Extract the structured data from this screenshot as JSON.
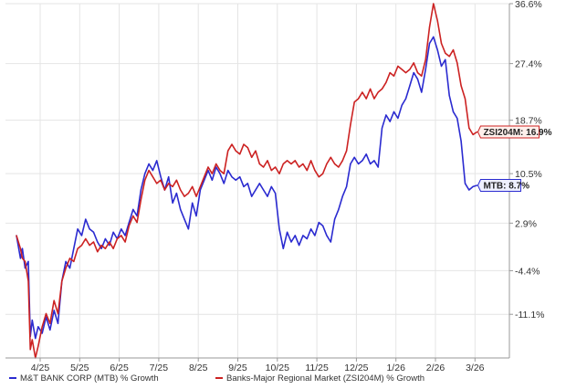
{
  "chart_data": {
    "type": "line",
    "x_ticks": [
      "4/25",
      "5/25",
      "6/25",
      "7/25",
      "8/25",
      "9/25",
      "10/25",
      "11/25",
      "12/25",
      "1/26",
      "2/26",
      "3/26"
    ],
    "x_range": [
      0,
      12.2
    ],
    "y_ticks": [
      "36.6%",
      "27.4%",
      "18.7%",
      "10.5%",
      "2.9%",
      "-4.4%",
      "-11.1%"
    ],
    "y_tick_values": [
      36.6,
      27.4,
      18.7,
      10.5,
      2.9,
      -4.4,
      -11.1
    ],
    "ylim": [
      -17.8,
      36.6
    ],
    "grid": true,
    "legend_placement": "bottom",
    "series": [
      {
        "name": "M&T BANK CORP (MTB) % Growth",
        "color": "#2b2bd0",
        "callout": "MTB: 8.7%",
        "callout_value": 8.7,
        "points": [
          [
            -0.6,
            1.0
          ],
          [
            -0.5,
            -2.5
          ],
          [
            -0.45,
            -1.0
          ],
          [
            -0.38,
            -4.0
          ],
          [
            -0.3,
            -3.0
          ],
          [
            -0.25,
            -14.5
          ],
          [
            -0.2,
            -12.0
          ],
          [
            -0.12,
            -14.8
          ],
          [
            -0.05,
            -13.0
          ],
          [
            0.05,
            -14.0
          ],
          [
            0.15,
            -11.5
          ],
          [
            0.25,
            -13.5
          ],
          [
            0.35,
            -10.5
          ],
          [
            0.45,
            -12.5
          ],
          [
            0.55,
            -6.0
          ],
          [
            0.65,
            -3.0
          ],
          [
            0.75,
            -4.0
          ],
          [
            0.85,
            -1.0
          ],
          [
            0.95,
            2.0
          ],
          [
            1.05,
            1.0
          ],
          [
            1.15,
            3.5
          ],
          [
            1.25,
            2.0
          ],
          [
            1.35,
            1.5
          ],
          [
            1.45,
            0.0
          ],
          [
            1.55,
            -1.0
          ],
          [
            1.65,
            0.5
          ],
          [
            1.75,
            -0.5
          ],
          [
            1.85,
            1.5
          ],
          [
            1.95,
            0.5
          ],
          [
            2.05,
            2.0
          ],
          [
            2.15,
            1.0
          ],
          [
            2.25,
            3.0
          ],
          [
            2.35,
            5.0
          ],
          [
            2.45,
            4.0
          ],
          [
            2.55,
            8.0
          ],
          [
            2.65,
            10.5
          ],
          [
            2.75,
            12.0
          ],
          [
            2.85,
            11.0
          ],
          [
            2.95,
            12.5
          ],
          [
            3.05,
            10.0
          ],
          [
            3.15,
            8.0
          ],
          [
            3.25,
            10.0
          ],
          [
            3.35,
            6.0
          ],
          [
            3.45,
            7.5
          ],
          [
            3.55,
            5.0
          ],
          [
            3.65,
            3.5
          ],
          [
            3.75,
            2.0
          ],
          [
            3.85,
            6.0
          ],
          [
            3.95,
            4.0
          ],
          [
            4.05,
            8.0
          ],
          [
            4.15,
            9.5
          ],
          [
            4.25,
            11.0
          ],
          [
            4.35,
            9.5
          ],
          [
            4.45,
            11.5
          ],
          [
            4.55,
            10.5
          ],
          [
            4.65,
            9.0
          ],
          [
            4.75,
            11.0
          ],
          [
            4.85,
            10.0
          ],
          [
            4.95,
            9.5
          ],
          [
            5.05,
            10.0
          ],
          [
            5.15,
            8.5
          ],
          [
            5.25,
            9.0
          ],
          [
            5.35,
            7.0
          ],
          [
            5.45,
            8.0
          ],
          [
            5.55,
            9.0
          ],
          [
            5.65,
            8.0
          ],
          [
            5.75,
            7.0
          ],
          [
            5.85,
            8.5
          ],
          [
            5.95,
            7.5
          ],
          [
            6.05,
            2.0
          ],
          [
            6.15,
            -1.0
          ],
          [
            6.25,
            1.5
          ],
          [
            6.35,
            0.0
          ],
          [
            6.45,
            1.0
          ],
          [
            6.55,
            -0.5
          ],
          [
            6.65,
            1.0
          ],
          [
            6.75,
            0.5
          ],
          [
            6.85,
            2.0
          ],
          [
            6.95,
            1.0
          ],
          [
            7.05,
            3.0
          ],
          [
            7.15,
            2.5
          ],
          [
            7.25,
            1.0
          ],
          [
            7.35,
            0.0
          ],
          [
            7.45,
            3.5
          ],
          [
            7.55,
            5.0
          ],
          [
            7.65,
            7.0
          ],
          [
            7.75,
            8.5
          ],
          [
            7.85,
            12.0
          ],
          [
            7.95,
            13.0
          ],
          [
            8.05,
            12.0
          ],
          [
            8.15,
            12.5
          ],
          [
            8.25,
            13.5
          ],
          [
            8.35,
            12.0
          ],
          [
            8.45,
            12.5
          ],
          [
            8.55,
            11.5
          ],
          [
            8.65,
            17.5
          ],
          [
            8.75,
            19.5
          ],
          [
            8.85,
            18.5
          ],
          [
            8.95,
            20.0
          ],
          [
            9.05,
            19.0
          ],
          [
            9.15,
            21.0
          ],
          [
            9.25,
            22.0
          ],
          [
            9.35,
            24.0
          ],
          [
            9.45,
            26.0
          ],
          [
            9.55,
            25.0
          ],
          [
            9.65,
            23.0
          ],
          [
            9.75,
            26.5
          ],
          [
            9.85,
            30.5
          ],
          [
            9.95,
            31.5
          ],
          [
            10.05,
            29.5
          ],
          [
            10.15,
            27.0
          ],
          [
            10.25,
            28.0
          ],
          [
            10.35,
            22.5
          ],
          [
            10.45,
            20.0
          ],
          [
            10.55,
            19.0
          ],
          [
            10.65,
            15.5
          ],
          [
            10.75,
            9.0
          ],
          [
            10.85,
            8.0
          ],
          [
            10.95,
            8.5
          ],
          [
            11.05,
            8.7
          ]
        ]
      },
      {
        "name": "Banks-Major Regional Market (ZSI204M) % Growth",
        "color": "#cc2222",
        "callout": "ZSI204M: 16.9%",
        "callout_value": 16.9,
        "points": [
          [
            -0.6,
            1.0
          ],
          [
            -0.5,
            -1.0
          ],
          [
            -0.45,
            -2.5
          ],
          [
            -0.38,
            -3.0
          ],
          [
            -0.3,
            -6.0
          ],
          [
            -0.25,
            -16.5
          ],
          [
            -0.2,
            -15.0
          ],
          [
            -0.12,
            -17.8
          ],
          [
            -0.05,
            -16.0
          ],
          [
            0.05,
            -13.0
          ],
          [
            0.15,
            -11.0
          ],
          [
            0.25,
            -12.5
          ],
          [
            0.35,
            -9.0
          ],
          [
            0.45,
            -11.0
          ],
          [
            0.55,
            -6.0
          ],
          [
            0.65,
            -4.0
          ],
          [
            0.75,
            -2.5
          ],
          [
            0.85,
            -3.0
          ],
          [
            0.95,
            -1.0
          ],
          [
            1.05,
            -0.5
          ],
          [
            1.15,
            0.5
          ],
          [
            1.25,
            -0.5
          ],
          [
            1.35,
            0.0
          ],
          [
            1.45,
            -1.5
          ],
          [
            1.55,
            -0.5
          ],
          [
            1.65,
            -1.0
          ],
          [
            1.75,
            0.0
          ],
          [
            1.85,
            -1.0
          ],
          [
            1.95,
            0.5
          ],
          [
            2.05,
            1.0
          ],
          [
            2.15,
            0.0
          ],
          [
            2.25,
            2.5
          ],
          [
            2.35,
            4.0
          ],
          [
            2.45,
            3.0
          ],
          [
            2.55,
            6.5
          ],
          [
            2.65,
            9.5
          ],
          [
            2.75,
            11.0
          ],
          [
            2.85,
            10.0
          ],
          [
            2.95,
            9.0
          ],
          [
            3.05,
            9.5
          ],
          [
            3.15,
            8.0
          ],
          [
            3.25,
            9.0
          ],
          [
            3.35,
            8.5
          ],
          [
            3.45,
            9.5
          ],
          [
            3.55,
            8.0
          ],
          [
            3.65,
            7.0
          ],
          [
            3.75,
            7.5
          ],
          [
            3.85,
            8.5
          ],
          [
            3.95,
            7.0
          ],
          [
            4.05,
            8.5
          ],
          [
            4.15,
            10.0
          ],
          [
            4.25,
            11.5
          ],
          [
            4.35,
            10.5
          ],
          [
            4.45,
            12.0
          ],
          [
            4.55,
            11.0
          ],
          [
            4.65,
            10.5
          ],
          [
            4.75,
            14.0
          ],
          [
            4.85,
            15.0
          ],
          [
            4.95,
            14.0
          ],
          [
            5.05,
            13.5
          ],
          [
            5.15,
            15.0
          ],
          [
            5.25,
            14.5
          ],
          [
            5.35,
            13.0
          ],
          [
            5.45,
            14.0
          ],
          [
            5.55,
            12.0
          ],
          [
            5.65,
            11.5
          ],
          [
            5.75,
            12.5
          ],
          [
            5.85,
            11.0
          ],
          [
            5.95,
            11.5
          ],
          [
            6.05,
            10.5
          ],
          [
            6.15,
            12.0
          ],
          [
            6.25,
            12.5
          ],
          [
            6.35,
            12.0
          ],
          [
            6.45,
            12.5
          ],
          [
            6.55,
            11.5
          ],
          [
            6.65,
            12.0
          ],
          [
            6.75,
            11.0
          ],
          [
            6.85,
            12.5
          ],
          [
            6.95,
            11.0
          ],
          [
            7.05,
            10.0
          ],
          [
            7.15,
            10.5
          ],
          [
            7.25,
            12.0
          ],
          [
            7.35,
            13.0
          ],
          [
            7.45,
            12.0
          ],
          [
            7.55,
            11.5
          ],
          [
            7.65,
            12.5
          ],
          [
            7.75,
            14.0
          ],
          [
            7.85,
            18.0
          ],
          [
            7.95,
            21.5
          ],
          [
            8.05,
            22.0
          ],
          [
            8.15,
            23.0
          ],
          [
            8.25,
            22.0
          ],
          [
            8.35,
            23.5
          ],
          [
            8.45,
            22.0
          ],
          [
            8.55,
            23.0
          ],
          [
            8.65,
            23.5
          ],
          [
            8.75,
            24.5
          ],
          [
            8.85,
            26.0
          ],
          [
            8.95,
            25.5
          ],
          [
            9.05,
            27.0
          ],
          [
            9.15,
            26.5
          ],
          [
            9.25,
            26.0
          ],
          [
            9.35,
            26.5
          ],
          [
            9.45,
            27.5
          ],
          [
            9.55,
            26.0
          ],
          [
            9.65,
            25.5
          ],
          [
            9.75,
            28.0
          ],
          [
            9.85,
            33.0
          ],
          [
            9.95,
            36.6
          ],
          [
            10.05,
            34.0
          ],
          [
            10.15,
            30.5
          ],
          [
            10.25,
            29.0
          ],
          [
            10.35,
            28.5
          ],
          [
            10.45,
            29.5
          ],
          [
            10.55,
            27.5
          ],
          [
            10.65,
            24.0
          ],
          [
            10.75,
            22.0
          ],
          [
            10.85,
            17.5
          ],
          [
            10.95,
            16.5
          ],
          [
            11.05,
            16.9
          ]
        ]
      }
    ]
  }
}
